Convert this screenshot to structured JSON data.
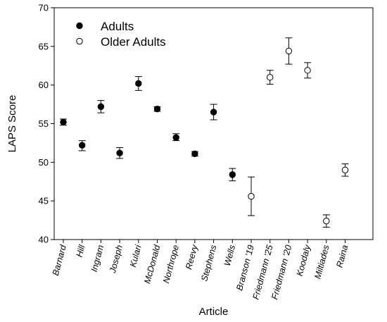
{
  "chart_data": {
    "type": "scatter",
    "xlabel": "Article",
    "ylabel": "LAPS Score",
    "ylim": [
      40,
      70
    ],
    "yticks": [
      40,
      45,
      50,
      55,
      60,
      65,
      70
    ],
    "grid": false,
    "legend_position": "top-left",
    "error_bars": true,
    "categories": [
      "Barnard",
      "Hill",
      "Ingram",
      "Joseph",
      "Kulari",
      "McDonald",
      "Northrope",
      "Reevy",
      "Stephens",
      "Wells",
      "Branson '19",
      "Friedmann '25",
      "Friedmann '20",
      "Koodaly",
      "Miltiades",
      "Raina"
    ],
    "series": [
      {
        "name": "Adults",
        "marker": "filled-circle",
        "color": "#000000",
        "points": [
          {
            "category": "Barnard",
            "value": 55.2,
            "err_low": 54.8,
            "err_high": 55.6
          },
          {
            "category": "Hill",
            "value": 52.2,
            "err_low": 51.5,
            "err_high": 52.8
          },
          {
            "category": "Ingram",
            "value": 57.2,
            "err_low": 56.4,
            "err_high": 58.0
          },
          {
            "category": "Joseph",
            "value": 51.2,
            "err_low": 50.5,
            "err_high": 51.9
          },
          {
            "category": "Kulari",
            "value": 60.2,
            "err_low": 59.3,
            "err_high": 61.1
          },
          {
            "category": "McDonald",
            "value": 56.9,
            "err_low": 56.6,
            "err_high": 57.2
          },
          {
            "category": "Northrope",
            "value": 53.2,
            "err_low": 52.8,
            "err_high": 53.7
          },
          {
            "category": "Reevy",
            "value": 51.1,
            "err_low": 50.8,
            "err_high": 51.4
          },
          {
            "category": "Stephens",
            "value": 56.5,
            "err_low": 55.5,
            "err_high": 57.5
          },
          {
            "category": "Wells",
            "value": 48.4,
            "err_low": 47.6,
            "err_high": 49.2
          }
        ]
      },
      {
        "name": "Older Adults",
        "marker": "open-circle",
        "color": "#000000",
        "points": [
          {
            "category": "Branson '19",
            "value": 45.6,
            "err_low": 43.1,
            "err_high": 48.1
          },
          {
            "category": "Friedmann '25",
            "value": 61.0,
            "err_low": 60.1,
            "err_high": 61.9
          },
          {
            "category": "Friedmann '20",
            "value": 64.4,
            "err_low": 62.7,
            "err_high": 66.1
          },
          {
            "category": "Koodaly",
            "value": 61.9,
            "err_low": 60.9,
            "err_high": 62.9
          },
          {
            "category": "Miltiades",
            "value": 42.4,
            "err_low": 41.6,
            "err_high": 43.2
          },
          {
            "category": "Raina",
            "value": 49.0,
            "err_low": 48.2,
            "err_high": 49.8
          }
        ]
      }
    ]
  }
}
